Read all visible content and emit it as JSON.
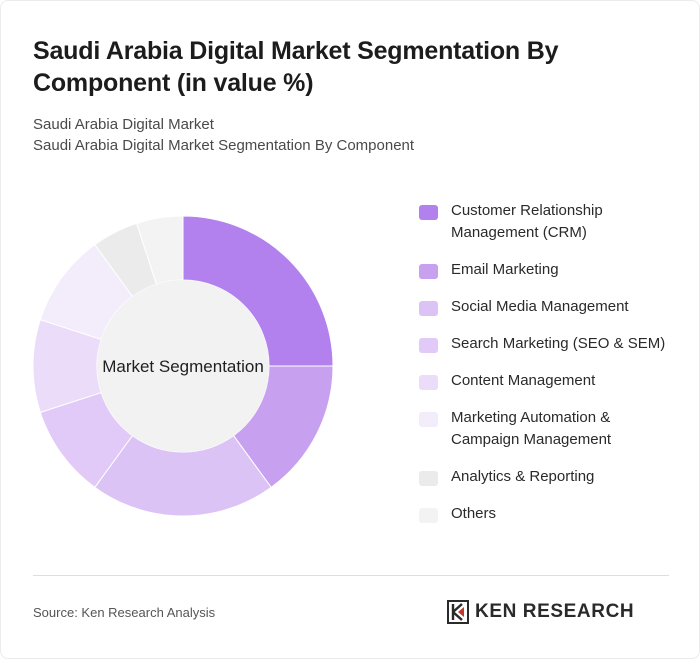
{
  "header": {
    "title": "Saudi Arabia Digital Market Segmentation By Component (in value %)",
    "subtitle_line1": "Saudi Arabia Digital Market",
    "subtitle_line2": "Saudi Arabia Digital Market Segmentation By Component"
  },
  "chart_data": {
    "type": "pie",
    "variant": "donut",
    "title": "Saudi Arabia Digital Market Segmentation By Component (in value %)",
    "center_label": "Market Segmentation",
    "legend_position": "right",
    "categories": [
      "Customer Relationship Management (CRM)",
      "Email Marketing",
      "Social Media Management",
      "Search Marketing (SEO & SEM)",
      "Content Management",
      "Marketing Automation & Campaign Management",
      "Analytics & Reporting",
      "Others"
    ],
    "values": [
      25,
      15,
      20,
      10,
      10,
      10,
      5,
      5
    ],
    "colors": [
      "#b381ed",
      "#c7a0f0",
      "#dcc3f6",
      "#e1caf7",
      "#ebdcf9",
      "#f3ecfb",
      "#ebebeb",
      "#f3f3f3"
    ]
  },
  "footer": {
    "source": "Source: Ken Research Analysis",
    "brand": "KEN RESEARCH",
    "brand_icon": "ken-research-logo-icon"
  }
}
